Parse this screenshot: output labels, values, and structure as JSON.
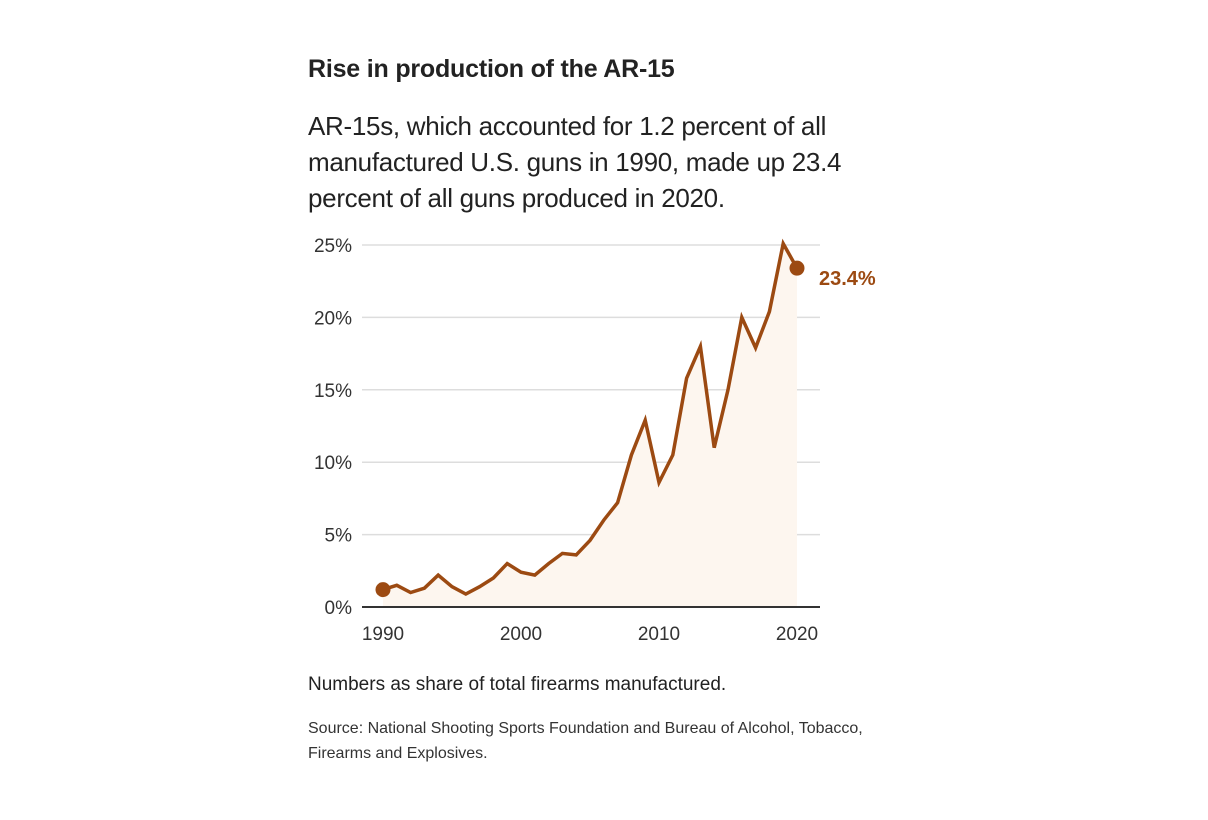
{
  "header": {
    "title": "Rise in production of the AR-15",
    "subtitle": "AR-15s, which accounted for 1.2 percent of all manufactured U.S. guns in 1990, made up 23.4 percent of all guns produced in 2020."
  },
  "footer": {
    "note": "Numbers as share of total firearms manufactured.",
    "source": "Source: National Shooting Sports Foundation and Bureau of Alcohol, Tobacco, Firearms and Explosives."
  },
  "colors": {
    "line": "#9c4a12",
    "area": "#fdf6ef",
    "grid": "#dddddd",
    "axis": "#333333"
  },
  "chart_data": {
    "type": "area",
    "title": "Rise in production of the AR-15",
    "xlabel": "",
    "ylabel": "",
    "x": [
      1990,
      1991,
      1992,
      1993,
      1994,
      1995,
      1996,
      1997,
      1998,
      1999,
      2000,
      2001,
      2002,
      2003,
      2004,
      2005,
      2006,
      2007,
      2008,
      2009,
      2010,
      2011,
      2012,
      2013,
      2014,
      2015,
      2016,
      2017,
      2018,
      2019,
      2020
    ],
    "series": [
      {
        "name": "AR-15 share of total firearms manufactured (%)",
        "values": [
          1.2,
          1.5,
          1.0,
          1.3,
          2.2,
          1.4,
          0.9,
          1.4,
          2.0,
          3.0,
          2.4,
          2.2,
          3.0,
          3.7,
          3.6,
          4.6,
          6.0,
          7.2,
          10.5,
          12.9,
          8.6,
          10.5,
          15.8,
          18.0,
          11.0,
          15.0,
          20.0,
          17.9,
          20.4,
          25.1,
          23.4
        ]
      }
    ],
    "xlim": [
      1990,
      2020
    ],
    "ylim": [
      0,
      25
    ],
    "x_ticks": [
      1990,
      2000,
      2010,
      2020
    ],
    "x_tick_labels": [
      "1990",
      "2000",
      "2010",
      "2020"
    ],
    "y_ticks": [
      0,
      5,
      10,
      15,
      20,
      25
    ],
    "y_tick_labels": [
      "0%",
      "5%",
      "10%",
      "15%",
      "20%",
      "25%"
    ],
    "grid": true,
    "annotations": [
      {
        "x": 1990,
        "y": 1.2,
        "marker": "dot"
      },
      {
        "x": 2020,
        "y": 23.4,
        "marker": "dot",
        "label": "23.4%"
      }
    ]
  }
}
